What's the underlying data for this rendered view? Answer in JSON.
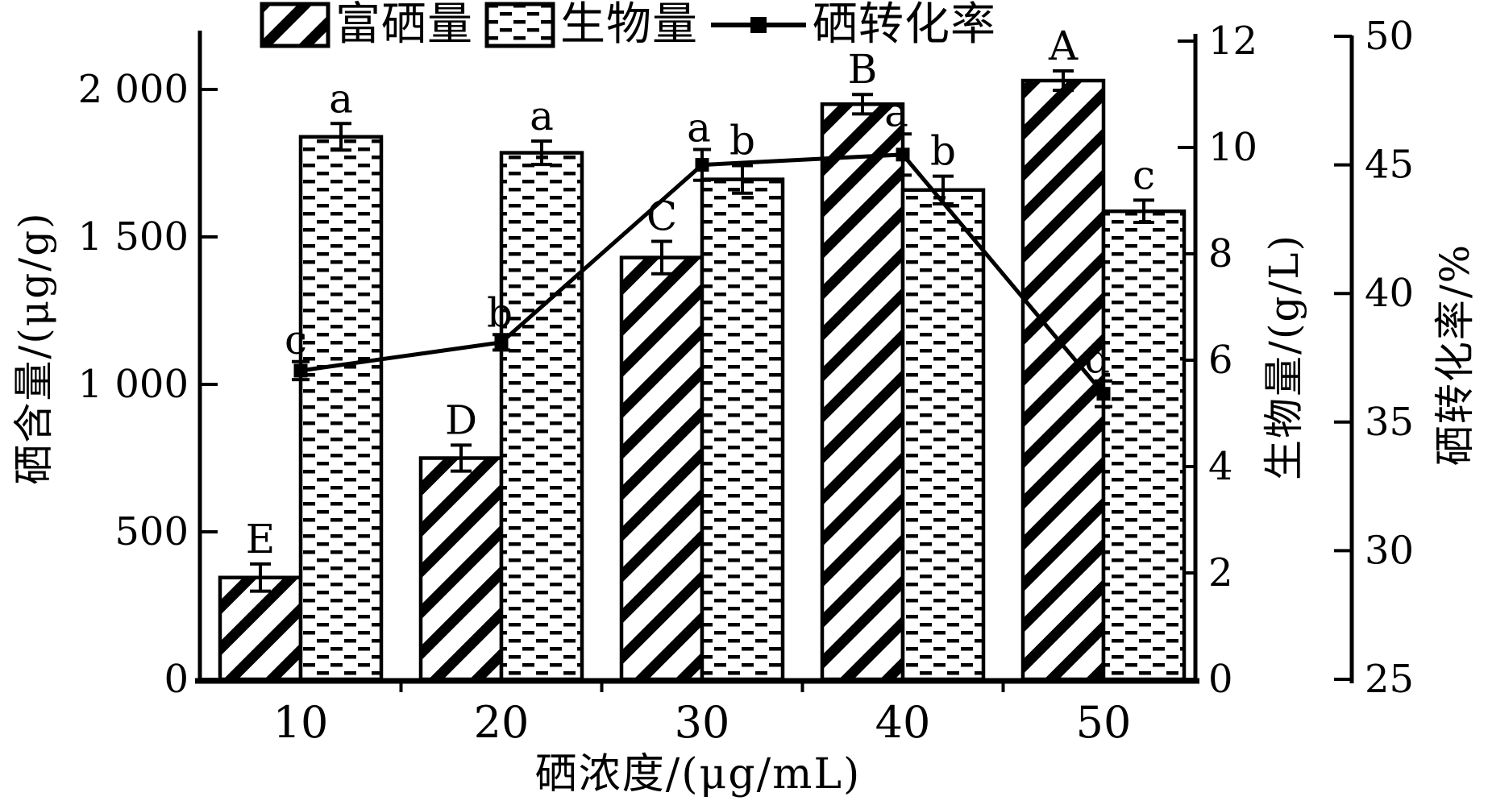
{
  "colors": {
    "ink": "#000000",
    "background": "#ffffff"
  },
  "legend": {
    "items": [
      {
        "label": "富硒量",
        "swatch": "hatch-swatch"
      },
      {
        "label": "生物量",
        "swatch": "dots-swatch"
      },
      {
        "label": "硒转化率",
        "swatch": "line-swatch"
      }
    ]
  },
  "chart_data": {
    "type": "bar",
    "categories": [
      "10",
      "20",
      "30",
      "40",
      "50"
    ],
    "xlabel": "硒浓度/(μg/mL)",
    "grid": false,
    "legend_position": "top",
    "axes": {
      "left": {
        "label": "硒含量/(μg/g)",
        "min": 0,
        "max": 2000,
        "tick_labels": [
          "0",
          "500",
          "1 000",
          "1 500",
          "2 000"
        ],
        "tick_values": [
          0,
          500,
          1000,
          1500,
          2000
        ]
      },
      "bio": {
        "label": "生物量/(g/L)",
        "min": 0,
        "max": 12,
        "tick_labels": [
          "0",
          "2",
          "4",
          "6",
          "8",
          "10",
          "12"
        ],
        "tick_values": [
          0,
          2,
          4,
          6,
          8,
          10,
          12
        ]
      },
      "conv": {
        "label": "硒转化率/%",
        "min": 25,
        "max": 50,
        "tick_labels": [
          "25",
          "30",
          "35",
          "40",
          "45",
          "50"
        ],
        "tick_values": [
          25,
          30,
          35,
          40,
          45,
          50
        ]
      }
    },
    "series": [
      {
        "name": "富硒量",
        "kind": "bar",
        "axis": "left",
        "pattern": "hatch",
        "values": [
          345,
          750,
          1430,
          1950,
          2030
        ],
        "errors": [
          46,
          44,
          55,
          33,
          33
        ],
        "letters": [
          "E",
          "D",
          "C",
          "B",
          "A"
        ]
      },
      {
        "name": "生物量",
        "kind": "bar",
        "axis": "bio",
        "pattern": "dots",
        "values": [
          10.2,
          9.9,
          9.4,
          9.2,
          8.8
        ],
        "errors": [
          0.25,
          0.22,
          0.26,
          0.26,
          0.21
        ],
        "letters": [
          "a",
          "a",
          "b",
          "b",
          "c"
        ]
      },
      {
        "name": "硒转化率",
        "kind": "line",
        "axis": "conv",
        "values": [
          37.0,
          38.1,
          45.0,
          45.4,
          36.1
        ],
        "errors": [
          0.35,
          0.3,
          0.6,
          0.8,
          0.5
        ],
        "letters": [
          "c",
          "b",
          "a",
          "a",
          "d"
        ]
      }
    ]
  }
}
